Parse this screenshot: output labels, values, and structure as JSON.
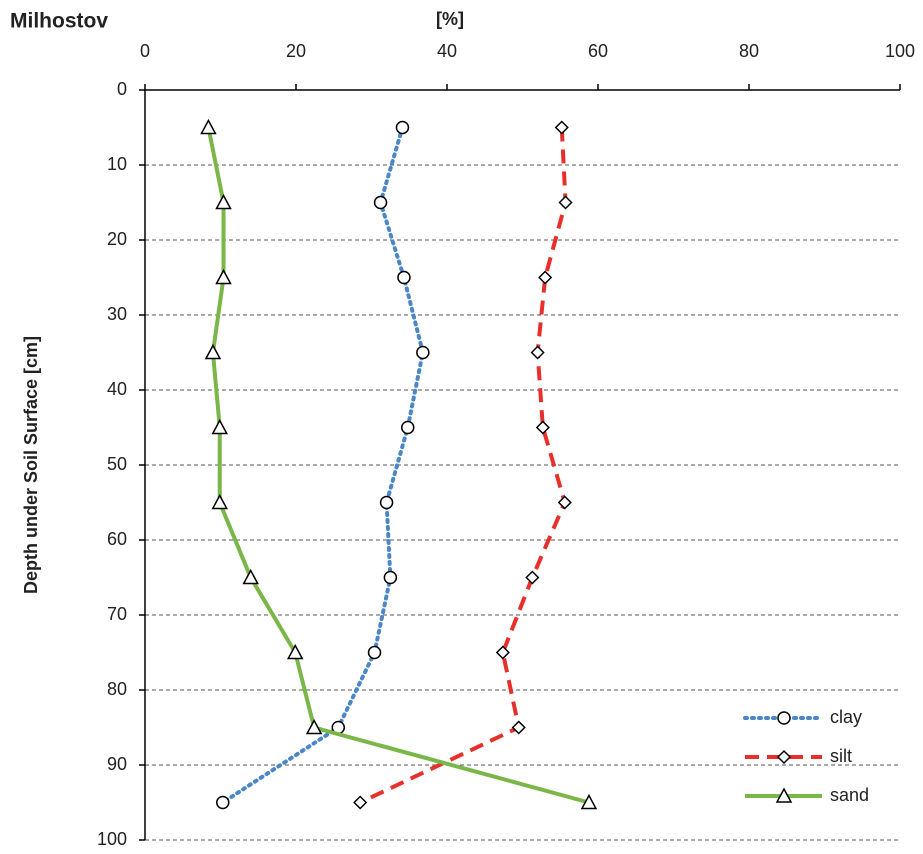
{
  "chart_data": {
    "type": "line",
    "title": "Milhostov",
    "x_label": "[%]",
    "y_label": "Depth under Soil Surface [cm]",
    "y": [
      5,
      15,
      25,
      35,
      45,
      55,
      65,
      75,
      85,
      95
    ],
    "series": [
      {
        "name": "clay",
        "color": "#4a86c8",
        "line_style": "dotted",
        "marker": "circle",
        "values": [
          34.1,
          31.2,
          34.3,
          36.8,
          34.8,
          32.0,
          32.5,
          30.4,
          25.6,
          10.3
        ]
      },
      {
        "name": "silt",
        "color": "#e8302a",
        "line_style": "dashed",
        "marker": "diamond",
        "values": [
          55.2,
          55.7,
          53.0,
          52.0,
          52.7,
          55.6,
          51.3,
          47.4,
          49.5,
          28.5
        ]
      },
      {
        "name": "sand",
        "color": "#7ab648",
        "line_style": "solid",
        "marker": "triangle",
        "values": [
          8.4,
          10.4,
          10.4,
          9.0,
          9.9,
          9.9,
          14.0,
          19.9,
          22.4,
          58.8
        ]
      }
    ],
    "xlim": [
      0,
      100
    ],
    "xticks": [
      0,
      20,
      40,
      60,
      80,
      100
    ],
    "ylim": [
      0,
      100
    ],
    "yticks": [
      0,
      10,
      20,
      30,
      40,
      50,
      60,
      70,
      80,
      90,
      100
    ],
    "y_inverted": true,
    "grid": true,
    "legend": "lower right"
  }
}
